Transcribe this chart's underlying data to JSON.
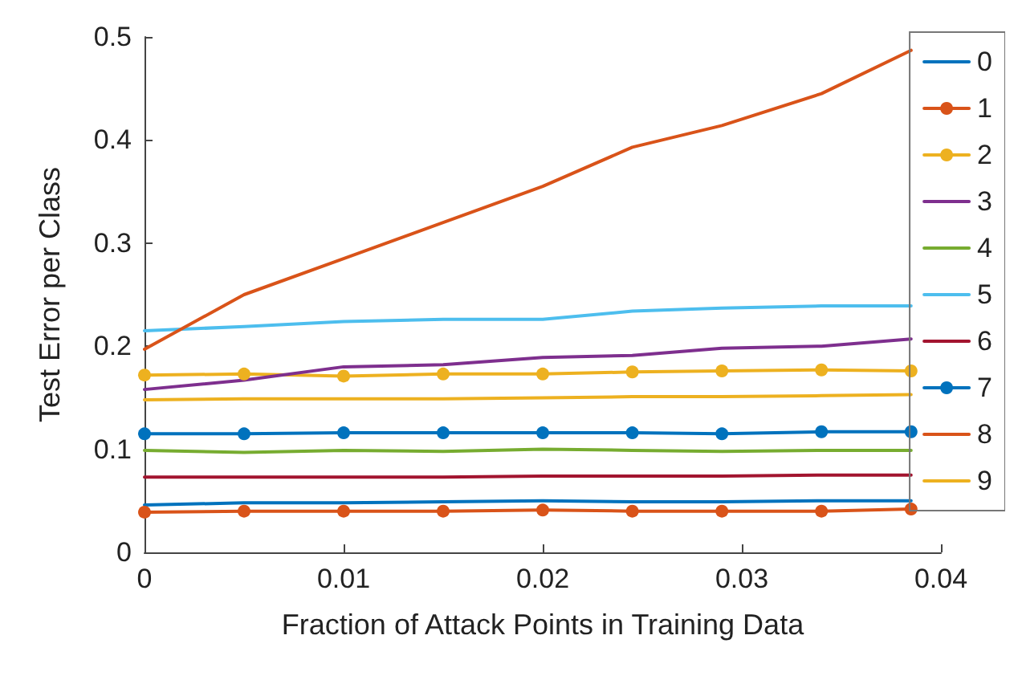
{
  "chart_data": {
    "type": "line",
    "xlabel": "Fraction of Attack Points in Training Data",
    "ylabel": "Test Error per Class",
    "x": [
      0,
      0.005,
      0.01,
      0.015,
      0.02,
      0.0245,
      0.029,
      0.034,
      0.0385
    ],
    "xlim": [
      0,
      0.04
    ],
    "xticks": [
      0,
      0.01,
      0.02,
      0.03,
      0.04
    ],
    "ylim": [
      0,
      0.5
    ],
    "yticks": [
      0,
      0.1,
      0.2,
      0.3,
      0.4,
      0.5
    ],
    "grid": false,
    "legend": "right",
    "series": [
      {
        "name": "0",
        "color": "#0072bd",
        "marker": "none",
        "values": [
          0.046,
          0.048,
          0.048,
          0.049,
          0.05,
          0.049,
          0.049,
          0.05,
          0.05
        ]
      },
      {
        "name": "1",
        "color": "#d95319",
        "marker": "circle",
        "values": [
          0.039,
          0.04,
          0.04,
          0.04,
          0.041,
          0.04,
          0.04,
          0.04,
          0.042
        ]
      },
      {
        "name": "2",
        "color": "#edb120",
        "marker": "circle",
        "values": [
          0.172,
          0.173,
          0.171,
          0.173,
          0.173,
          0.175,
          0.176,
          0.177,
          0.176
        ]
      },
      {
        "name": "3",
        "color": "#7e2f8e",
        "marker": "none",
        "values": [
          0.158,
          0.167,
          0.18,
          0.182,
          0.189,
          0.191,
          0.198,
          0.2,
          0.207
        ]
      },
      {
        "name": "4",
        "color": "#77ac30",
        "marker": "none",
        "values": [
          0.099,
          0.097,
          0.099,
          0.098,
          0.1,
          0.099,
          0.098,
          0.099,
          0.099
        ]
      },
      {
        "name": "5",
        "color": "#4dbeee",
        "marker": "none",
        "values": [
          0.215,
          0.219,
          0.224,
          0.226,
          0.226,
          0.234,
          0.237,
          0.239,
          0.239
        ]
      },
      {
        "name": "6",
        "color": "#a2142f",
        "marker": "none",
        "values": [
          0.073,
          0.073,
          0.073,
          0.073,
          0.074,
          0.074,
          0.074,
          0.075,
          0.075
        ]
      },
      {
        "name": "7",
        "color": "#0072bd",
        "marker": "circle",
        "values": [
          0.115,
          0.115,
          0.116,
          0.116,
          0.116,
          0.116,
          0.115,
          0.117,
          0.117
        ]
      },
      {
        "name": "8",
        "color": "#d95319",
        "marker": "none",
        "values": [
          0.197,
          0.25,
          0.285,
          0.32,
          0.355,
          0.393,
          0.414,
          0.445,
          0.487
        ]
      },
      {
        "name": "9",
        "color": "#edb120",
        "marker": "none",
        "values": [
          0.148,
          0.149,
          0.149,
          0.149,
          0.15,
          0.151,
          0.151,
          0.152,
          0.153
        ]
      }
    ]
  }
}
